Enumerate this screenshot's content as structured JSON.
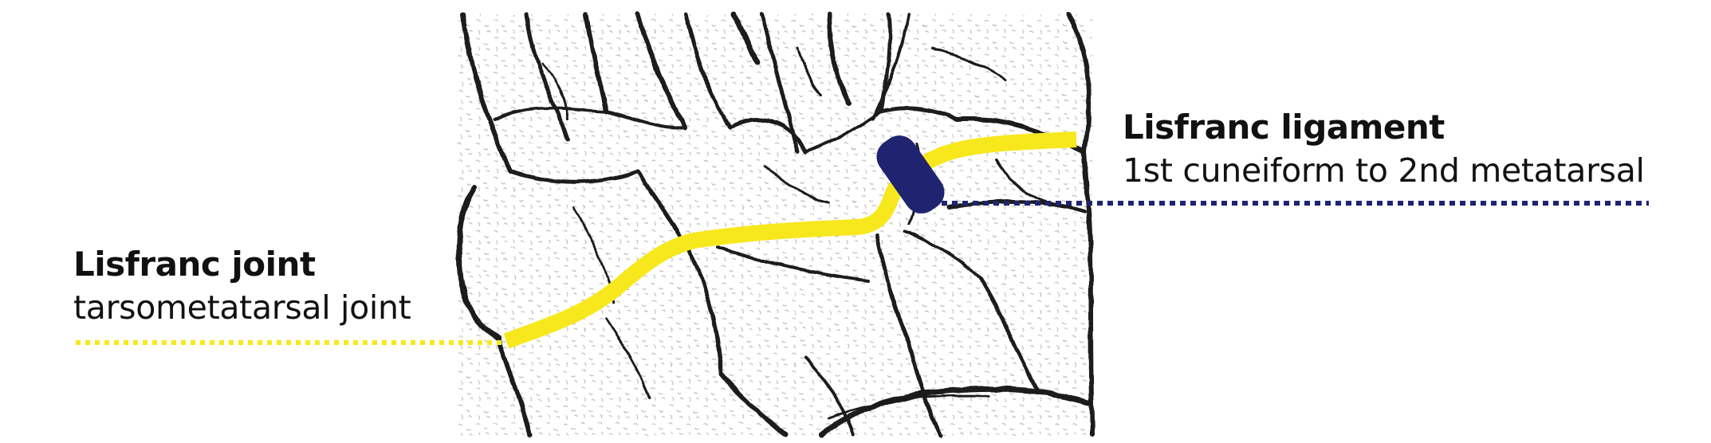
{
  "labels": {
    "joint": {
      "title": "Lisfranc joint",
      "subtitle": "tarsometatarsal joint"
    },
    "ligament": {
      "title": "Lisfranc ligament",
      "subtitle": "1st cuneiform to 2nd metatarsal"
    }
  },
  "colors": {
    "background": "#ffffff",
    "joint_line": "#f7e81d",
    "ligament": "#1f2370",
    "bone_outline": "#1a1a1a",
    "text": "#111111"
  },
  "icons": {
    "illustration": "foot-bones-sketch"
  }
}
